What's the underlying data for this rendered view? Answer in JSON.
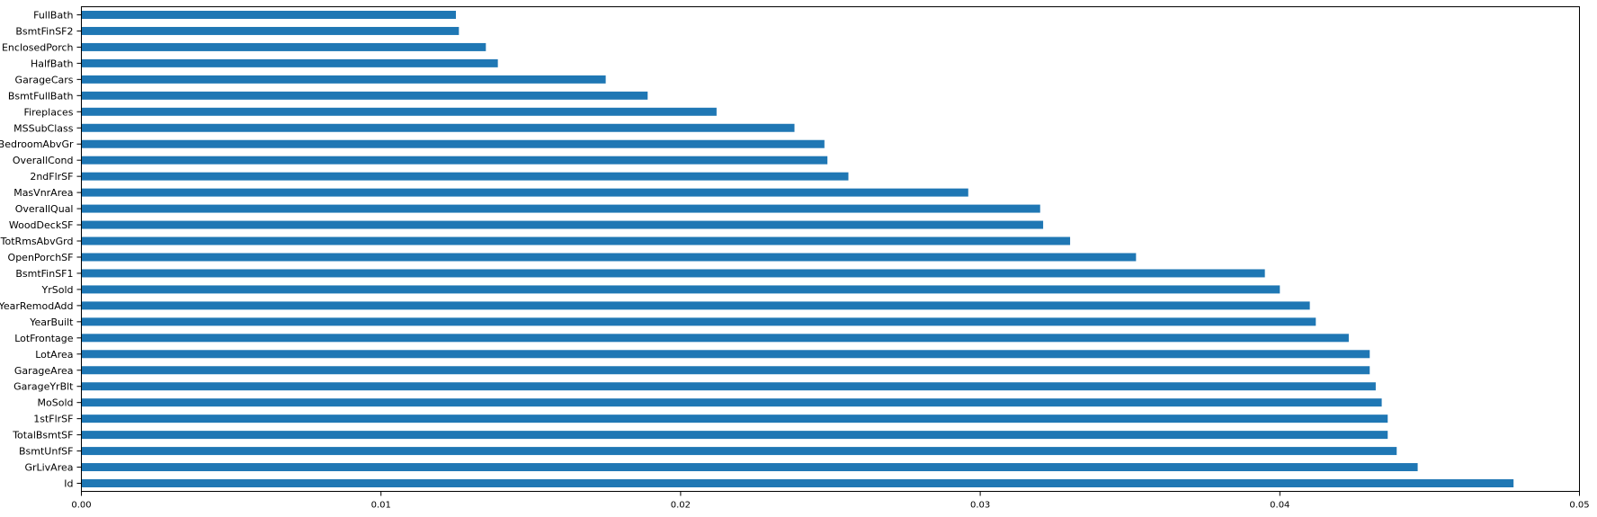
{
  "chart_data": {
    "type": "bar",
    "orientation": "horizontal",
    "bar_color": "#1f77b4",
    "categories": [
      "Id",
      "GrLivArea",
      "BsmtUnfSF",
      "TotalBsmtSF",
      "1stFlrSF",
      "MoSold",
      "GarageYrBlt",
      "GarageArea",
      "LotArea",
      "LotFrontage",
      "YearBuilt",
      "YearRemodAdd",
      "YrSold",
      "BsmtFinSF1",
      "OpenPorchSF",
      "TotRmsAbvGrd",
      "WoodDeckSF",
      "OverallQual",
      "MasVnrArea",
      "2ndFlrSF",
      "OverallCond",
      "BedroomAbvGr",
      "MSSubClass",
      "Fireplaces",
      "BsmtFullBath",
      "GarageCars",
      "HalfBath",
      "EnclosedPorch",
      "BsmtFinSF2",
      "FullBath"
    ],
    "values": [
      0.0478,
      0.0446,
      0.0439,
      0.0436,
      0.0436,
      0.0434,
      0.0432,
      0.043,
      0.043,
      0.0423,
      0.0412,
      0.041,
      0.04,
      0.0395,
      0.0352,
      0.033,
      0.0321,
      0.032,
      0.0296,
      0.0256,
      0.0249,
      0.0248,
      0.0238,
      0.0212,
      0.0189,
      0.0175,
      0.0139,
      0.0135,
      0.0126,
      0.0125
    ],
    "xlim": [
      0,
      0.05
    ],
    "xticks": [
      "0.00",
      "0.01",
      "0.02",
      "0.03",
      "0.04",
      "0.05"
    ],
    "title": "",
    "xlabel": "",
    "ylabel": "",
    "grid": false
  }
}
